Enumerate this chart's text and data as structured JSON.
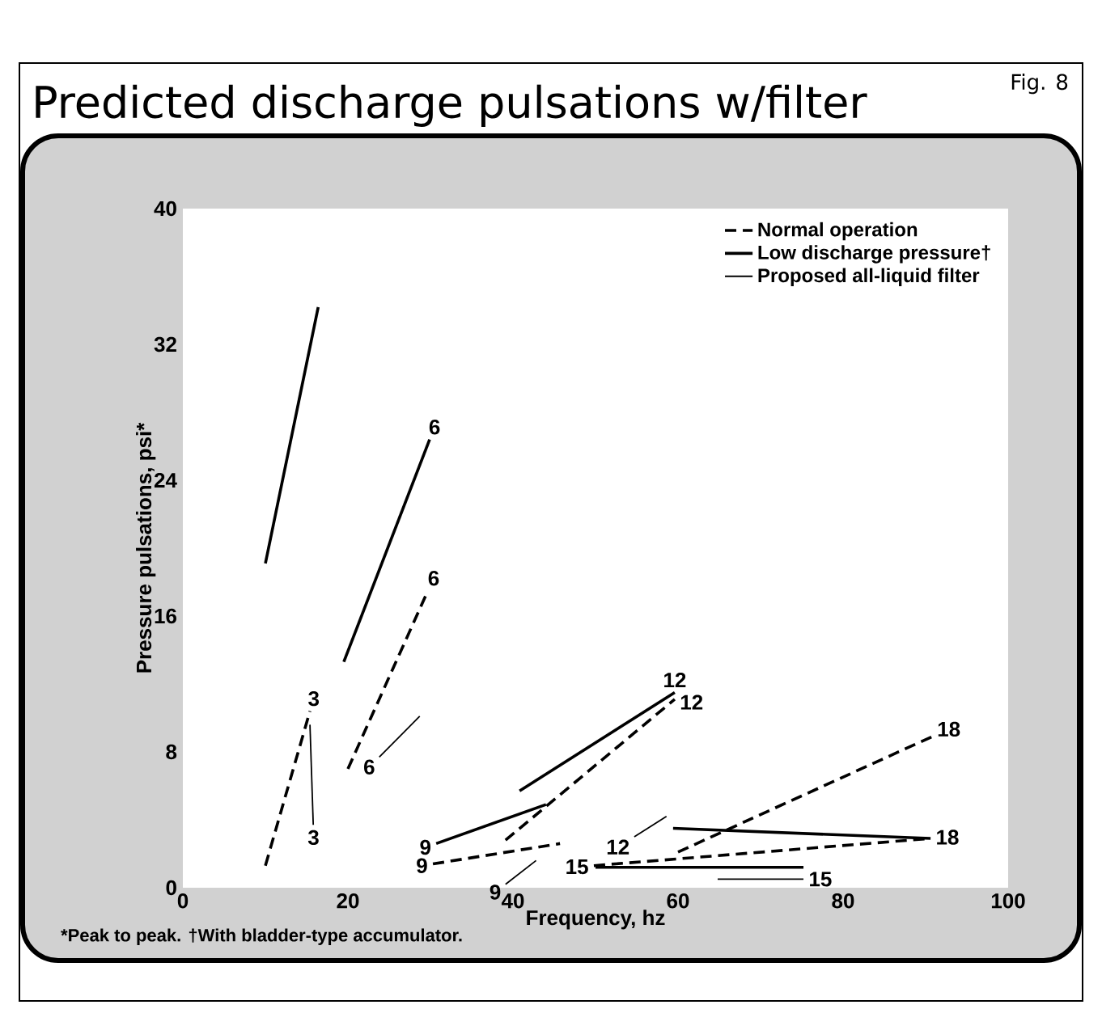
{
  "chart_data": {
    "type": "line",
    "title": "Predicted discharge pulsations w/filter",
    "xlabel": "Frequency, hz",
    "ylabel": "Pressure pulsations, psi*",
    "xlim": [
      0,
      100
    ],
    "xticks": [
      0,
      20,
      40,
      60,
      80,
      100
    ],
    "ylim": [
      0,
      40
    ],
    "yticks": [
      0,
      8,
      16,
      24,
      32,
      40
    ],
    "grid": false,
    "legend": "top right",
    "marker": "none",
    "series": [
      {
        "name": "Normal operation",
        "color": "#000000",
        "line_style": "dashed",
        "x": [
          10,
          15.4
        ],
        "values": [
          1.3,
          10.4
        ]
      },
      {
        "color": "#000000",
        "line_style": "dashed",
        "x": [
          20,
          29.7
        ],
        "values": [
          7,
          17.5
        ]
      },
      {
        "color": "#000000",
        "line_style": "dashed",
        "x": [
          30.3,
          45.7
        ],
        "values": [
          1.4,
          2.6
        ]
      },
      {
        "color": "#000000",
        "line_style": "dashed",
        "x": [
          39.1,
          59.6
        ],
        "values": [
          2.8,
          11.1
        ]
      },
      {
        "color": "#000000",
        "line_style": "dashed",
        "x": [
          49.8,
          90.6
        ],
        "values": [
          1.3,
          2.9
        ]
      },
      {
        "color": "#000000",
        "line_style": "dashed",
        "x": [
          60,
          90.8
        ],
        "values": [
          2.1,
          8.9
        ]
      },
      {
        "name": "Low discharge pressure†",
        "color": "#000000",
        "line_style": "solid",
        "x": [
          10,
          16.4
        ],
        "values": [
          19.1,
          34.2
        ]
      },
      {
        "color": "#000000",
        "line_style": "solid",
        "x": [
          19.5,
          29.9
        ],
        "values": [
          13.3,
          26.4
        ]
      },
      {
        "color": "#000000",
        "line_style": "solid",
        "x": [
          30.7,
          44
        ],
        "values": [
          2.6,
          4.9
        ]
      },
      {
        "color": "#000000",
        "line_style": "solid",
        "x": [
          40.8,
          59.6
        ],
        "values": [
          5.7,
          11.5
        ]
      },
      {
        "color": "#000000",
        "line_style": "solid",
        "x": [
          50,
          75.2
        ],
        "values": [
          1.2,
          1.2
        ]
      },
      {
        "color": "#000000",
        "line_style": "solid",
        "x": [
          59.4,
          90.6
        ],
        "values": [
          3.5,
          2.9
        ]
      },
      {
        "name": "Proposed all-liquid filter",
        "color": "#000000",
        "line_style": "solid",
        "x": [
          15.4,
          15.8
        ],
        "values": [
          9.6,
          3.7
        ]
      },
      {
        "color": "#000000",
        "line_style": "solid",
        "x": [
          23.8,
          28.7
        ],
        "values": [
          7.7,
          10.1
        ]
      },
      {
        "color": "#000000",
        "line_style": "solid",
        "x": [
          39.1,
          42.8
        ],
        "values": [
          0.2,
          1.6
        ]
      },
      {
        "color": "#000000",
        "line_style": "solid",
        "x": [
          54.7,
          58.6
        ],
        "values": [
          3.0,
          4.2
        ]
      },
      {
        "color": "#000000",
        "line_style": "solid",
        "x": [
          64.8,
          75.2
        ],
        "values": [
          0.5,
          0.5
        ]
      }
    ],
    "annotations": [
      "Fig. 8",
      "*Peak to peak.  †With bladder-type accumulator.",
      {
        "text": "3",
        "x": 15.4,
        "y": 10.4
      },
      {
        "text": "3",
        "x": 15.8,
        "y": 3.7
      },
      {
        "text": "6",
        "x": 29.9,
        "y": 26.4
      },
      {
        "text": "6",
        "x": 29.7,
        "y": 17.5
      },
      {
        "text": "6",
        "x": 23.8,
        "y": 7.7
      },
      {
        "text": "9",
        "x": 30.7,
        "y": 2.6
      },
      {
        "text": "9",
        "x": 30.3,
        "y": 1.4
      },
      {
        "text": "9",
        "x": 39.1,
        "y": 0.2
      },
      {
        "text": "12",
        "x": 59.6,
        "y": 11.5
      },
      {
        "text": "12",
        "x": 59.6,
        "y": 11.1
      },
      {
        "text": "12",
        "x": 54.7,
        "y": 3.0
      },
      {
        "text": "15",
        "x": 49.8,
        "y": 1.3
      },
      {
        "text": "15",
        "x": 75.2,
        "y": 0.5
      },
      {
        "text": "18",
        "x": 90.8,
        "y": 8.9
      },
      {
        "text": "18",
        "x": 90.6,
        "y": 2.9
      }
    ]
  }
}
